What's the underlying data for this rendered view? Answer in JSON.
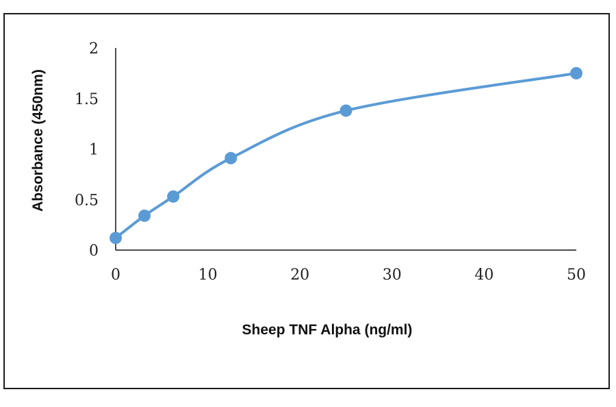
{
  "chart_data": {
    "type": "line",
    "title": "",
    "xlabel": "Sheep TNF Alpha (ng/ml)",
    "ylabel": "Absorbance (450nm)",
    "xlim": [
      0,
      50
    ],
    "ylim": [
      0,
      2
    ],
    "x_ticks": [
      "0",
      "10",
      "20",
      "30",
      "40",
      "50"
    ],
    "y_ticks": [
      "0",
      "0.5",
      "1",
      "1.5",
      "2"
    ],
    "grid": false,
    "legend": "none",
    "series": [
      {
        "color": "#5b9bd5",
        "smooth": true,
        "x": [
          0,
          3.125,
          6.25,
          12.5,
          25,
          50
        ],
        "y": [
          0.12,
          0.34,
          0.53,
          0.91,
          1.38,
          1.75
        ]
      }
    ]
  }
}
